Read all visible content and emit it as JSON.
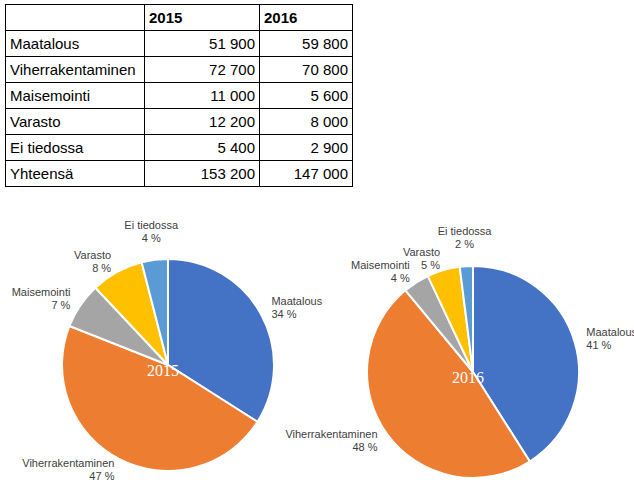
{
  "table": {
    "header": [
      "2015",
      "2016"
    ],
    "rows": [
      [
        "Maatalous",
        "51 900",
        "59 800"
      ],
      [
        "Viherrakentaminen",
        "72 700",
        "70 800"
      ],
      [
        "Maisemointi",
        "11 000",
        "5 600"
      ],
      [
        "Varasto",
        "12 200",
        "8 000"
      ],
      [
        "Ei tiedossa",
        "5 400",
        "2 900"
      ],
      [
        "Yhteensä",
        "153 200",
        "147 000"
      ]
    ]
  },
  "chart_data": [
    {
      "type": "pie",
      "title": "2015",
      "categories": [
        "Maatalous",
        "Viherrakentaminen",
        "Maisemointi",
        "Varasto",
        "Ei tiedossa"
      ],
      "values": [
        34,
        47,
        7,
        8,
        4
      ],
      "value_labels": [
        "34 %",
        "47 %",
        "7 %",
        "8 %",
        "4 %"
      ],
      "colors": [
        "#4472c4",
        "#ed7d31",
        "#a5a5a5",
        "#ffc000",
        "#5b9bd5"
      ],
      "data_labels": true
    },
    {
      "type": "pie",
      "title": "2016",
      "categories": [
        "Maatalous",
        "Viherrakentaminen",
        "Maisemointi",
        "Varasto",
        "Ei tiedossa"
      ],
      "values": [
        41,
        48,
        4,
        5,
        2
      ],
      "value_labels": [
        "41 %",
        "48 %",
        "4 %",
        "5 %",
        "2 %"
      ],
      "colors": [
        "#4472c4",
        "#ed7d31",
        "#a5a5a5",
        "#ffc000",
        "#5b9bd5"
      ],
      "data_labels": true
    }
  ]
}
